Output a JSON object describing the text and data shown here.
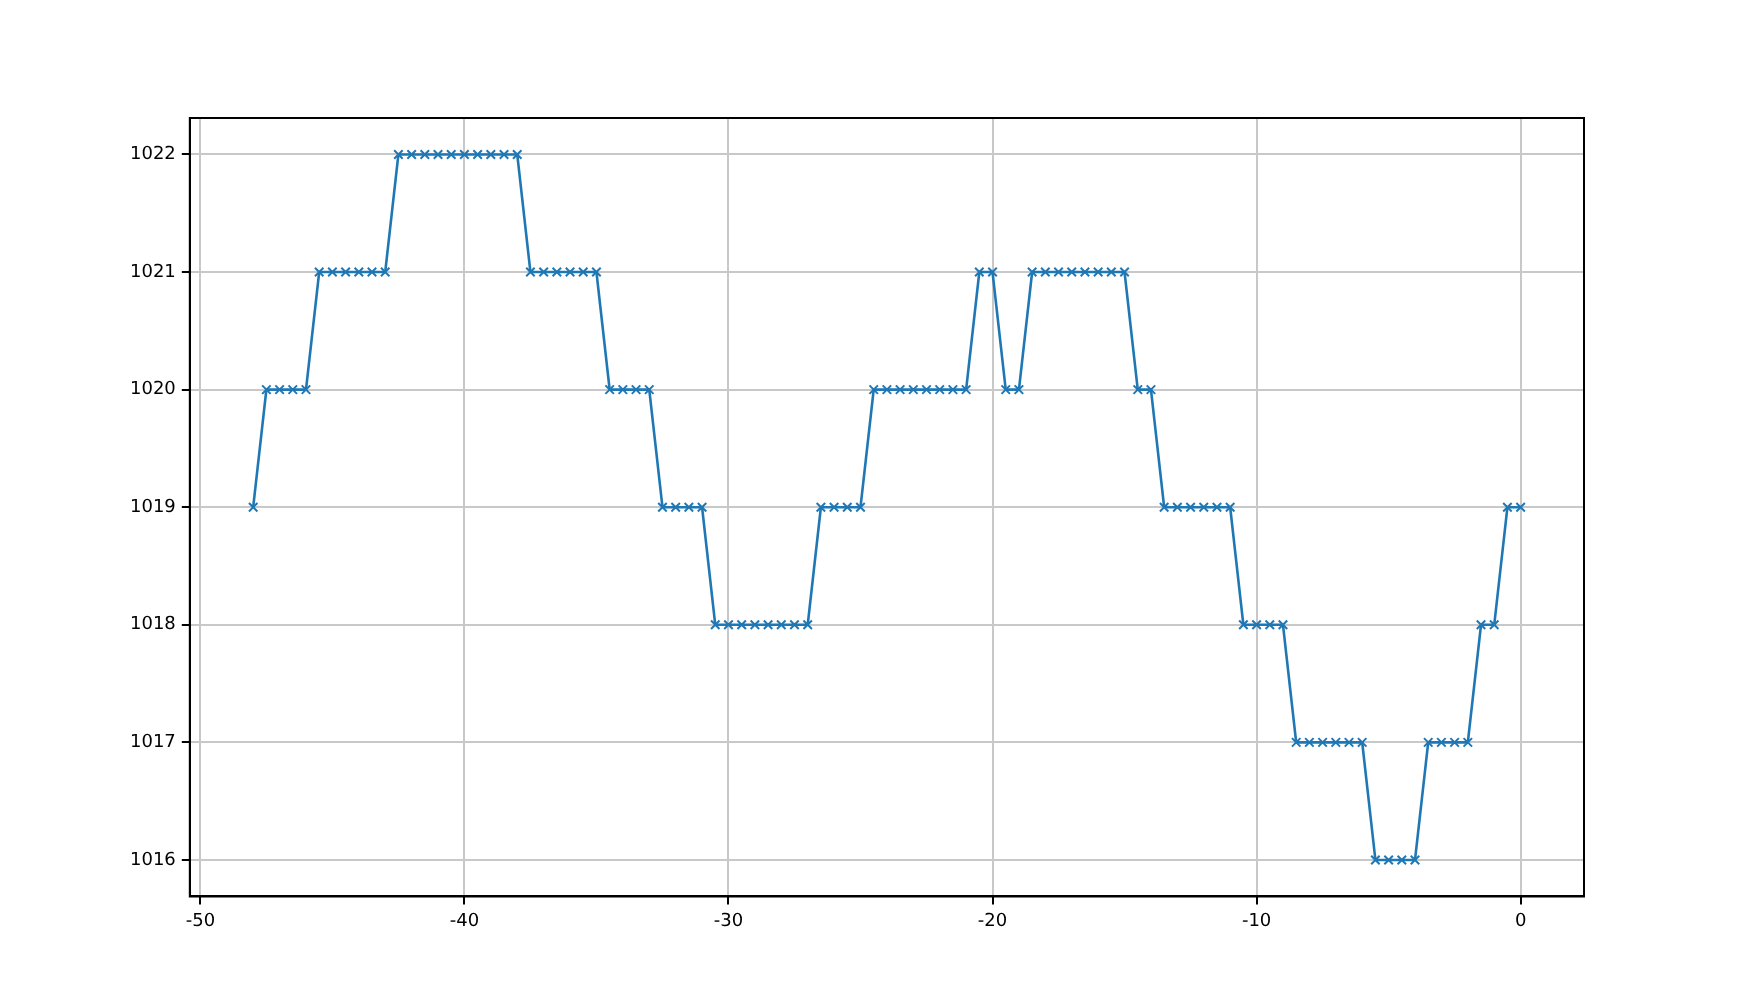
{
  "chart_data": {
    "type": "line",
    "x": [
      -48,
      -47.5,
      -47,
      -46.5,
      -46,
      -45.5,
      -45,
      -44.5,
      -44,
      -43.5,
      -43,
      -42.5,
      -42,
      -41.5,
      -41,
      -40.5,
      -40,
      -39.5,
      -39,
      -38.5,
      -38,
      -37.5,
      -37,
      -36.5,
      -36,
      -35.5,
      -35,
      -34.5,
      -34,
      -33.5,
      -33,
      -32.5,
      -32,
      -31.5,
      -31,
      -30.5,
      -30,
      -29.5,
      -29,
      -28.5,
      -28,
      -27.5,
      -27,
      -26.5,
      -26,
      -25.5,
      -25,
      -24.5,
      -24,
      -23.5,
      -23,
      -22.5,
      -22,
      -21.5,
      -21,
      -20.5,
      -20,
      -19.5,
      -19,
      -18.5,
      -18,
      -17.5,
      -17,
      -16.5,
      -16,
      -15.5,
      -15,
      -14.5,
      -14,
      -13.5,
      -13,
      -12.5,
      -12,
      -11.5,
      -11,
      -10.5,
      -10,
      -9.5,
      -9,
      -8.5,
      -8,
      -7.5,
      -7,
      -6.5,
      -6,
      -5.5,
      -5,
      -4.5,
      -4,
      -3.5,
      -3,
      -2.5,
      -2,
      -1.5,
      -1,
      -0.5,
      0
    ],
    "series": [
      {
        "color": "#1f77b4",
        "values": [
          1019,
          1020,
          1020,
          1020,
          1020,
          1021,
          1021,
          1021,
          1021,
          1021,
          1021,
          1022,
          1022,
          1022,
          1022,
          1022,
          1022,
          1022,
          1022,
          1022,
          1022,
          1021,
          1021,
          1021,
          1021,
          1021,
          1021,
          1020,
          1020,
          1020,
          1020,
          1019,
          1019,
          1019,
          1019,
          1018,
          1018,
          1018,
          1018,
          1018,
          1018,
          1018,
          1018,
          1019,
          1019,
          1019,
          1019,
          1020,
          1020,
          1020,
          1020,
          1020,
          1020,
          1020,
          1020,
          1021,
          1021,
          1020,
          1020,
          1021,
          1021,
          1021,
          1021,
          1021,
          1021,
          1021,
          1021,
          1020,
          1020,
          1019,
          1019,
          1019,
          1019,
          1019,
          1019,
          1018,
          1018,
          1018,
          1018,
          1017,
          1017,
          1017,
          1017,
          1017,
          1017,
          1016,
          1016,
          1016,
          1016,
          1017,
          1017,
          1017,
          1017,
          1018,
          1018,
          1019,
          1019
        ]
      }
    ],
    "xlim": [
      -50.4,
      2.4
    ],
    "xticks": [
      -50,
      -40,
      -30,
      -20,
      -10,
      0
    ],
    "ylim": [
      1015.69,
      1022.31
    ],
    "yticks": [
      1016,
      1017,
      1018,
      1019,
      1020,
      1021,
      1022
    ],
    "grid": true,
    "marker": "cross",
    "line_style": "solid"
  }
}
